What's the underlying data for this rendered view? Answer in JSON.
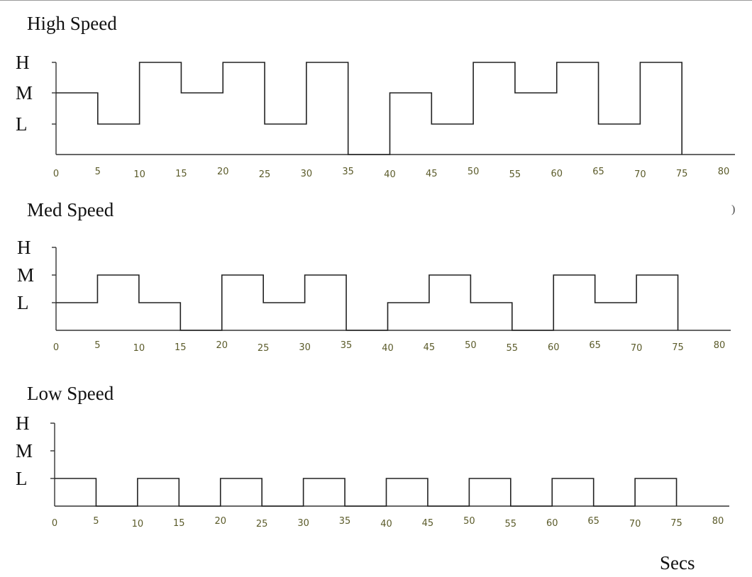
{
  "chart_data": [
    {
      "type": "line",
      "step": "post",
      "title": "High Speed",
      "ylevels": [
        "L",
        "M",
        "H"
      ],
      "ytick_labels": [
        "H",
        "M",
        "L"
      ],
      "xlim": [
        0,
        80
      ],
      "xticks": [
        0,
        5,
        10,
        15,
        20,
        25,
        30,
        35,
        40,
        45,
        50,
        55,
        60,
        65,
        70,
        75,
        80
      ],
      "series": [
        {
          "x": [
            0,
            5,
            10,
            15,
            20,
            25,
            30,
            35,
            40,
            45,
            50,
            55,
            60,
            65,
            70,
            75
          ],
          "y": [
            "M",
            "L",
            "H",
            "M",
            "H",
            "L",
            "H",
            "off",
            "M",
            "L",
            "H",
            "M",
            "H",
            "L",
            "H",
            "off"
          ]
        }
      ]
    },
    {
      "type": "line",
      "step": "post",
      "title": "Med Speed",
      "ylevels": [
        "L",
        "M",
        "H"
      ],
      "ytick_labels": [
        "H",
        "M",
        "L"
      ],
      "xlim": [
        0,
        80
      ],
      "xticks": [
        0,
        5,
        10,
        15,
        20,
        25,
        30,
        35,
        40,
        45,
        50,
        55,
        60,
        65,
        70,
        75,
        80
      ],
      "series": [
        {
          "x": [
            0,
            5,
            10,
            15,
            20,
            25,
            30,
            35,
            40,
            45,
            50,
            55,
            60,
            65,
            70,
            75
          ],
          "y": [
            "L",
            "M",
            "L",
            "off",
            "M",
            "L",
            "M",
            "off",
            "L",
            "M",
            "L",
            "off",
            "M",
            "L",
            "M",
            "off"
          ]
        }
      ]
    },
    {
      "type": "line",
      "step": "post",
      "title": "Low Speed",
      "ylevels": [
        "L",
        "M",
        "H"
      ],
      "ytick_labels": [
        "H",
        "M",
        "L"
      ],
      "xlim": [
        0,
        80
      ],
      "xticks": [
        0,
        5,
        10,
        15,
        20,
        25,
        30,
        35,
        40,
        45,
        50,
        55,
        60,
        65,
        70,
        75,
        80
      ],
      "series": [
        {
          "x": [
            0,
            5,
            10,
            15,
            20,
            25,
            30,
            35,
            40,
            45,
            50,
            55,
            60,
            65,
            70,
            75
          ],
          "y": [
            "L",
            "off",
            "L",
            "off",
            "L",
            "off",
            "L",
            "off",
            "L",
            "off",
            "L",
            "off",
            "L",
            "off",
            "L",
            "off"
          ]
        }
      ]
    }
  ],
  "xlabel": "Secs"
}
